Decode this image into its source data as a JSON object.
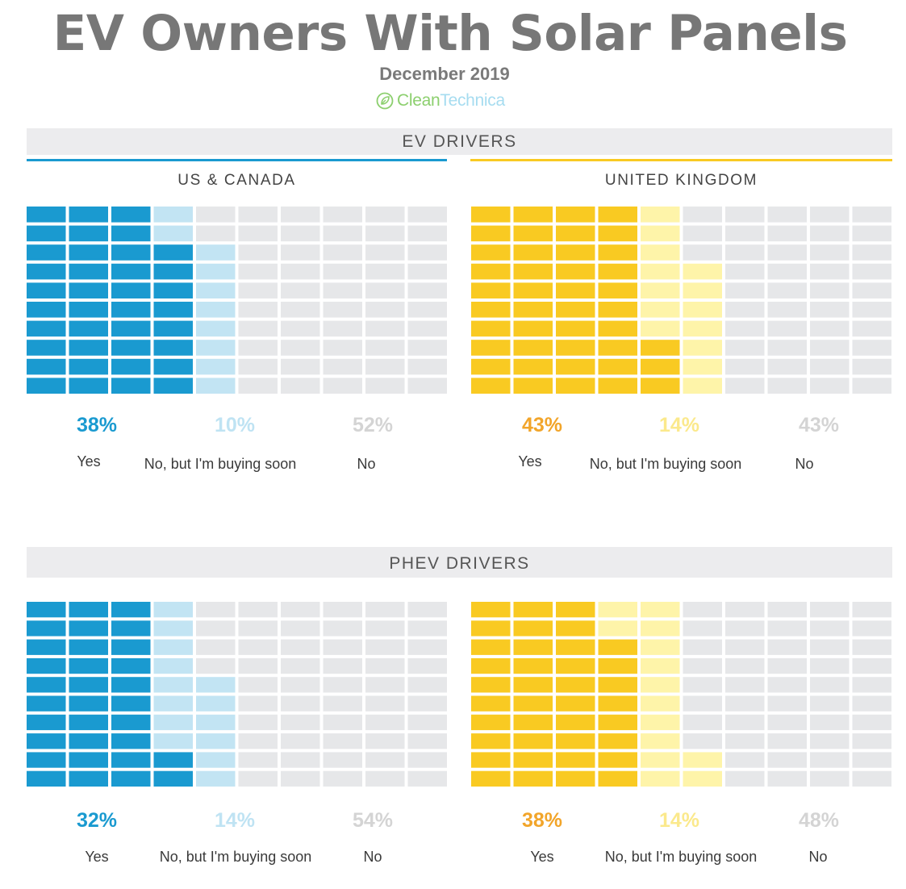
{
  "title": "EV Owners With Solar Panels",
  "subtitle": "December 2019",
  "brand": {
    "part1": "Clean",
    "part2": "Technica",
    "icon": "leaf-plug-icon"
  },
  "sections": [
    {
      "heading": "EV DRIVERS"
    },
    {
      "heading": "PHEV DRIVERS"
    }
  ],
  "regions": [
    "US & CANADA",
    "UNITED KINGDOM"
  ],
  "colors": {
    "us_yes": "#1a9ad0",
    "us_soon": "#c2e4f3",
    "uk_yes": "#f9ca22",
    "uk_soon": "#fef4a9",
    "empty": "#e6e7e9",
    "us_line": "#1a9ad0",
    "uk_line": "#f9ca22",
    "us_yes_text": "#1a9ad0",
    "us_soon_text": "#bfe3f3",
    "uk_yes_text": "#f2a52a",
    "uk_soon_text": "#fbe98c",
    "no_text": "#d4d4d4"
  },
  "chart_data": [
    {
      "type": "waffle",
      "title": "EV DRIVERS — US & CANADA",
      "categories": [
        "Yes",
        "No, but I'm buying soon",
        "No"
      ],
      "values": [
        38,
        10,
        52
      ],
      "labels": [
        "38%",
        "10%",
        "52%"
      ]
    },
    {
      "type": "waffle",
      "title": "EV DRIVERS — UNITED KINGDOM",
      "categories": [
        "Yes",
        "No, but I'm buying soon",
        "No"
      ],
      "values": [
        43,
        14,
        43
      ],
      "labels": [
        "43%",
        "14%",
        "43%"
      ]
    },
    {
      "type": "waffle",
      "title": "PHEV DRIVERS — US & CANADA",
      "categories": [
        "Yes",
        "No, but I'm buying soon",
        "No"
      ],
      "values": [
        32,
        14,
        54
      ],
      "labels": [
        "32%",
        "14%",
        "54%"
      ]
    },
    {
      "type": "waffle",
      "title": "PHEV DRIVERS — UNITED KINGDOM",
      "categories": [
        "Yes",
        "No, but I'm buying soon",
        "No"
      ],
      "values": [
        38,
        14,
        48
      ],
      "labels": [
        "38%",
        "14%",
        "48%"
      ]
    }
  ]
}
